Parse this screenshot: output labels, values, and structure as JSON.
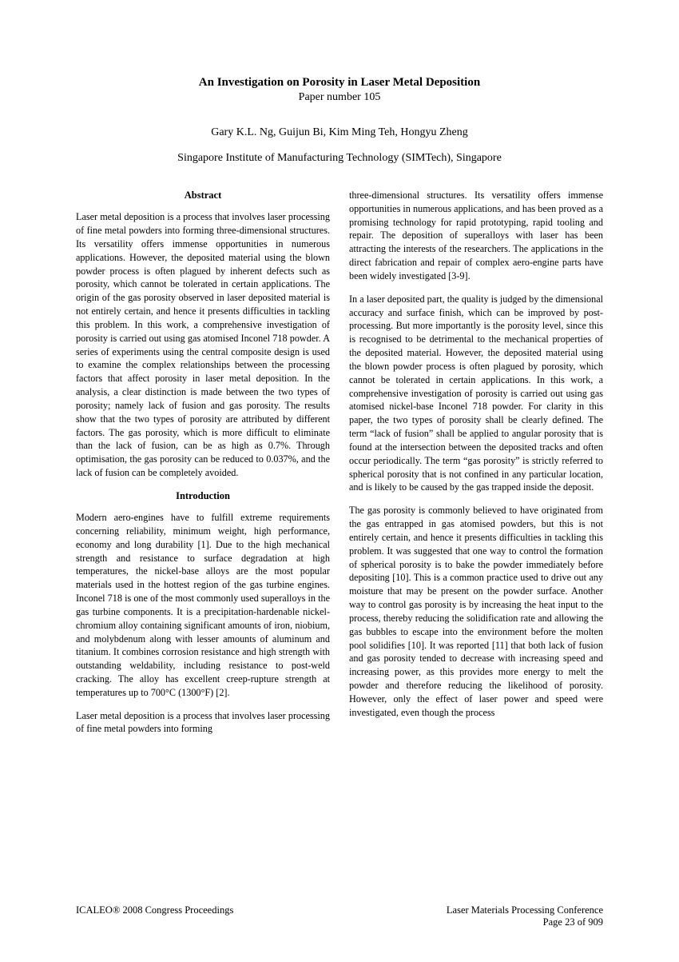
{
  "header": {
    "title": "An Investigation on Porosity in Laser Metal Deposition",
    "paper_number": "Paper number 105",
    "authors": "Gary K.L. Ng, Guijun Bi, Kim Ming Teh, Hongyu Zheng",
    "affiliation": "Singapore Institute of Manufacturing Technology (SIMTech), Singapore"
  },
  "left_column": {
    "abstract_heading": "Abstract",
    "abstract_text": "Laser metal deposition is a process that involves laser processing of fine metal powders into forming three-dimensional structures. Its versatility offers immense opportunities in numerous applications. However, the deposited material using the blown powder process is often plagued by inherent defects such as porosity, which cannot be tolerated in certain applications. The origin of the gas porosity observed in laser deposited material is not entirely certain, and hence it presents difficulties in tackling this problem. In this work, a comprehensive investigation of porosity is carried out using gas atomised Inconel 718 powder. A series of experiments using the central composite design is used to examine the complex relationships between the processing factors that affect porosity in laser metal deposition. In the analysis, a clear distinction is made between the two types of porosity; namely lack of fusion and gas porosity. The results show that the two types of porosity are attributed by different factors. The gas porosity, which is more difficult to eliminate than the lack of fusion, can be as high as 0.7%. Through optimisation, the gas porosity can be reduced to 0.037%, and the lack of fusion can be completely avoided.",
    "intro_heading": "Introduction",
    "intro_p1": "Modern aero-engines have to fulfill extreme requirements concerning reliability, minimum weight, high performance, economy and long durability [1].  Due to the high mechanical strength and resistance to surface degradation at high temperatures, the nickel-base alloys are the most popular materials used in the hottest region of the gas turbine engines. Inconel 718 is one of the most commonly used superalloys in the gas turbine components. It is a precipitation-hardenable nickel-chromium alloy containing significant amounts of iron, niobium, and molybdenum along with lesser amounts of aluminum and titanium. It combines corrosion resistance and high strength with outstanding weldability, including resistance to post-weld cracking. The alloy has excellent creep-rupture strength at temperatures up to 700°C (1300°F) [2].",
    "intro_p2": "Laser metal deposition is a process that involves laser processing of fine metal powders into forming"
  },
  "right_column": {
    "p1": "three-dimensional structures. Its versatility offers immense opportunities in numerous applications, and has been proved as a promising technology for rapid prototyping, rapid tooling and repair. The deposition of superalloys with laser has been attracting the interests of the researchers. The applications in the direct fabrication and repair of complex aero-engine parts have been widely investigated [3-9].",
    "p2": "In a laser deposited part, the quality is judged by the dimensional accuracy and surface finish, which can be improved by post-processing. But more importantly is the porosity level, since this is recognised to be detrimental to the mechanical properties of the deposited material. However, the deposited material using the blown powder process is often plagued by porosity, which cannot be tolerated in certain applications. In this work, a comprehensive investigation of porosity is carried out using gas atomised nickel-base Inconel 718 powder. For clarity in this paper, the two types of porosity shall be clearly defined. The term “lack of fusion” shall be applied to angular porosity that is found at the intersection between the deposited tracks and often occur periodically. The term “gas porosity” is strictly referred to spherical porosity that is not confined in any particular location, and is likely to be caused by the gas trapped inside the deposit.",
    "p3": "The gas porosity is commonly believed to have originated from the gas entrapped in gas atomised powders, but this is not entirely certain, and hence it presents difficulties in tackling this problem. It was suggested that one way to control the formation of spherical porosity is to bake the powder immediately before depositing [10]. This is a common practice used to drive out any moisture that may be present on the powder surface. Another way to control gas porosity is by increasing the heat input to the process, thereby reducing the solidification rate and allowing the gas bubbles to escape into the environment before the molten pool solidifies [10]. It was reported [11] that both lack of fusion and gas porosity tended to decrease with increasing speed and increasing power, as this provides more energy to melt the powder and therefore reducing the likelihood of porosity. However, only the effect of laser power and speed were investigated, even though the process"
  },
  "footer": {
    "left": "ICALEO® 2008 Congress Proceedings",
    "right_line1": "Laser Materials Processing Conference",
    "right_line2": "Page 23 of 909"
  }
}
